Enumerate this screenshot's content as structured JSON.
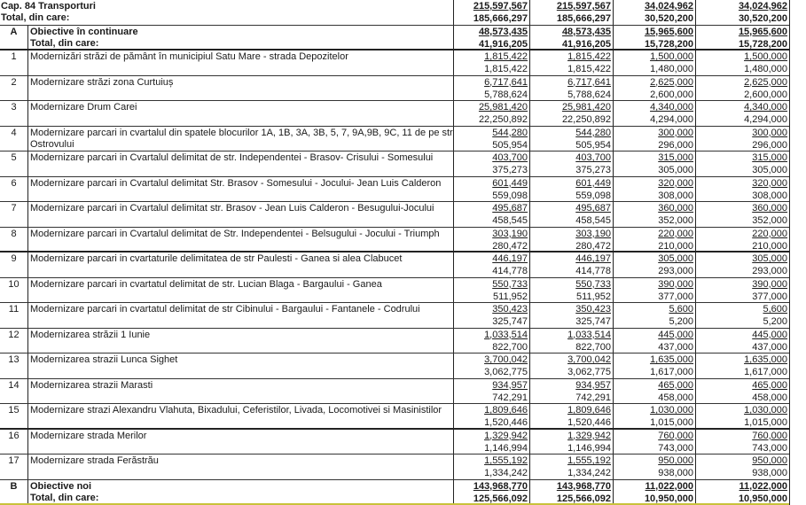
{
  "header": {
    "label": "Cap. 84 Transporturi",
    "sublabel": "Total, din care:",
    "values": [
      [
        "215,597,567",
        "185,666,297"
      ],
      [
        "215,597,567",
        "185,666,297"
      ],
      [
        "34,024,962",
        "30,520,200"
      ],
      [
        "34,024,962",
        "30,520,200"
      ]
    ]
  },
  "sections": [
    {
      "code": "A",
      "label": "Obiective în continuare",
      "sublabel": "Total, din care:",
      "values": [
        [
          "48,573,435",
          "41,916,205"
        ],
        [
          "48,573,435",
          "41,916,205"
        ],
        [
          "15,965,600",
          "15,728,200"
        ],
        [
          "15,965,600",
          "15,728,200"
        ]
      ]
    },
    {
      "code": "B",
      "label": "Obiective noi",
      "sublabel": "Total, din care:",
      "values": [
        [
          "143,968,770",
          "125,566,092"
        ],
        [
          "143,968,770",
          "125,566,092"
        ],
        [
          "11,022,000",
          "10,950,000"
        ],
        [
          "11,022,000",
          "10,950,000"
        ]
      ]
    }
  ],
  "items": [
    {
      "nr": "1",
      "desc": "Modernizări străzi de pământ în municipiul Satu Mare - strada Depozitelor",
      "values": [
        [
          "1,815,422",
          "1,815,422"
        ],
        [
          "1,815,422",
          "1,815,422"
        ],
        [
          "1,500,000",
          "1,480,000"
        ],
        [
          "1,500,000",
          "1,480,000"
        ]
      ]
    },
    {
      "nr": "2",
      "desc": "Modernizare străzi zona Curtuiuș",
      "values": [
        [
          "6,717,641",
          "5,788,624"
        ],
        [
          "6,717,641",
          "5,788,624"
        ],
        [
          "2,625,000",
          "2,600,000"
        ],
        [
          "2,625,000",
          "2,600,000"
        ]
      ]
    },
    {
      "nr": "3",
      "desc": "Modernizare Drum Carei",
      "values": [
        [
          "25,981,420",
          "22,250,892"
        ],
        [
          "25,981,420",
          "22,250,892"
        ],
        [
          "4,340,000",
          "4,294,000"
        ],
        [
          "4,340,000",
          "4,294,000"
        ]
      ]
    },
    {
      "nr": "4",
      "desc": "Modernizare parcari in cvartalul din spatele blocurilor 1A, 1B, 3A, 3B, 5, 7, 9A,9B, 9C, 11 de pe str Ostrovului",
      "values": [
        [
          "544,280",
          "505,954"
        ],
        [
          "544,280",
          "505,954"
        ],
        [
          "300,000",
          "296,000"
        ],
        [
          "300,000",
          "296,000"
        ]
      ]
    },
    {
      "nr": "5",
      "desc": "Modernizare parcari in Cvartalul delimitat de str. Independentei - Brasov- Crisului - Somesului",
      "values": [
        [
          "403,700",
          "375,273"
        ],
        [
          "403,700",
          "375,273"
        ],
        [
          "315,000",
          "305,000"
        ],
        [
          "315,000",
          "305,000"
        ]
      ]
    },
    {
      "nr": "6",
      "desc": "Modernizare parcari in Cvartalul delimitat Str. Brasov - Somesului - Jocului- Jean Luis Calderon",
      "values": [
        [
          "601,449",
          "559,098"
        ],
        [
          "601,449",
          "559,098"
        ],
        [
          "320,000",
          "308,000"
        ],
        [
          "320,000",
          "308,000"
        ]
      ]
    },
    {
      "nr": "7",
      "desc": "Modernizare parcari in Cvartalul delimitat str. Brasov - Jean Luis Calderon - Besugului-Jocului",
      "values": [
        [
          "495,687",
          "458,545"
        ],
        [
          "495,687",
          "458,545"
        ],
        [
          "360,000",
          "352,000"
        ],
        [
          "360,000",
          "352,000"
        ]
      ]
    },
    {
      "nr": "8",
      "desc": "Modernizare parcari in Cvartalul delimitat de Str. Independentei - Belsugului - Jocului - Triumph",
      "values": [
        [
          "303,190",
          "280,472"
        ],
        [
          "303,190",
          "280,472"
        ],
        [
          "220,000",
          "210,000"
        ],
        [
          "220,000",
          "210,000"
        ]
      ]
    },
    {
      "nr": "9",
      "desc": "Modernizare parcari in cvartaturile delimitatea de str Paulesti - Ganea si alea Clabucet",
      "values": [
        [
          "446,197",
          "414,778"
        ],
        [
          "446,197",
          "414,778"
        ],
        [
          "305,000",
          "293,000"
        ],
        [
          "305,000",
          "293,000"
        ]
      ]
    },
    {
      "nr": "10",
      "desc": "Modernizare parcari in cvartatul delimitat  de str. Lucian Blaga - Bargaului - Ganea",
      "values": [
        [
          "550,733",
          "511,952"
        ],
        [
          "550,733",
          "511,952"
        ],
        [
          "390,000",
          "377,000"
        ],
        [
          "390,000",
          "377,000"
        ]
      ]
    },
    {
      "nr": "11",
      "desc": "Modernizare parcari in cvartatul delimitat de str Cibinului - Bargaului - Fantanele - Codrului",
      "values": [
        [
          "350,423",
          "325,747"
        ],
        [
          "350,423",
          "325,747"
        ],
        [
          "5,600",
          "5,200"
        ],
        [
          "5,600",
          "5,200"
        ]
      ]
    },
    {
      "nr": "12",
      "desc": "Modernizarea străzii 1 Iunie",
      "values": [
        [
          "1,033,514",
          "822,700"
        ],
        [
          "1,033,514",
          "822,700"
        ],
        [
          "445,000",
          "437,000"
        ],
        [
          "445,000",
          "437,000"
        ]
      ]
    },
    {
      "nr": "13",
      "desc": "Modernizarea strazii Lunca Sighet",
      "values": [
        [
          "3,700,042",
          "3,062,775"
        ],
        [
          "3,700,042",
          "3,062,775"
        ],
        [
          "1,635,000",
          "1,617,000"
        ],
        [
          "1,635,000",
          "1,617,000"
        ]
      ]
    },
    {
      "nr": "14",
      "desc": "Modernizarea strazii Marasti",
      "values": [
        [
          "934,957",
          "742,291"
        ],
        [
          "934,957",
          "742,291"
        ],
        [
          "465,000",
          "458,000"
        ],
        [
          "465,000",
          "458,000"
        ]
      ]
    },
    {
      "nr": "15",
      "desc": "Modernizare strazi Alexandru Vlahuta, Bixadului, Ceferistilor, Livada, Locomotivei si Masinistilor",
      "values": [
        [
          "1,809,646",
          "1,520,446"
        ],
        [
          "1,809,646",
          "1,520,446"
        ],
        [
          "1,030,000",
          "1,015,000"
        ],
        [
          "1,030,000",
          "1,015,000"
        ]
      ]
    },
    {
      "nr": "16",
      "desc": "Modernizare strada Merilor",
      "values": [
        [
          "1,329,942",
          "1,146,994"
        ],
        [
          "1,329,942",
          "1,146,994"
        ],
        [
          "760,000",
          "743,000"
        ],
        [
          "760,000",
          "743,000"
        ]
      ]
    },
    {
      "nr": "17",
      "desc": "Modernizare strada Ferăstrău",
      "values": [
        [
          "1,555,192",
          "1,334,242"
        ],
        [
          "1,555,192",
          "1,334,242"
        ],
        [
          "950,000",
          "938,000"
        ],
        [
          "950,000",
          "938,000"
        ]
      ]
    }
  ]
}
